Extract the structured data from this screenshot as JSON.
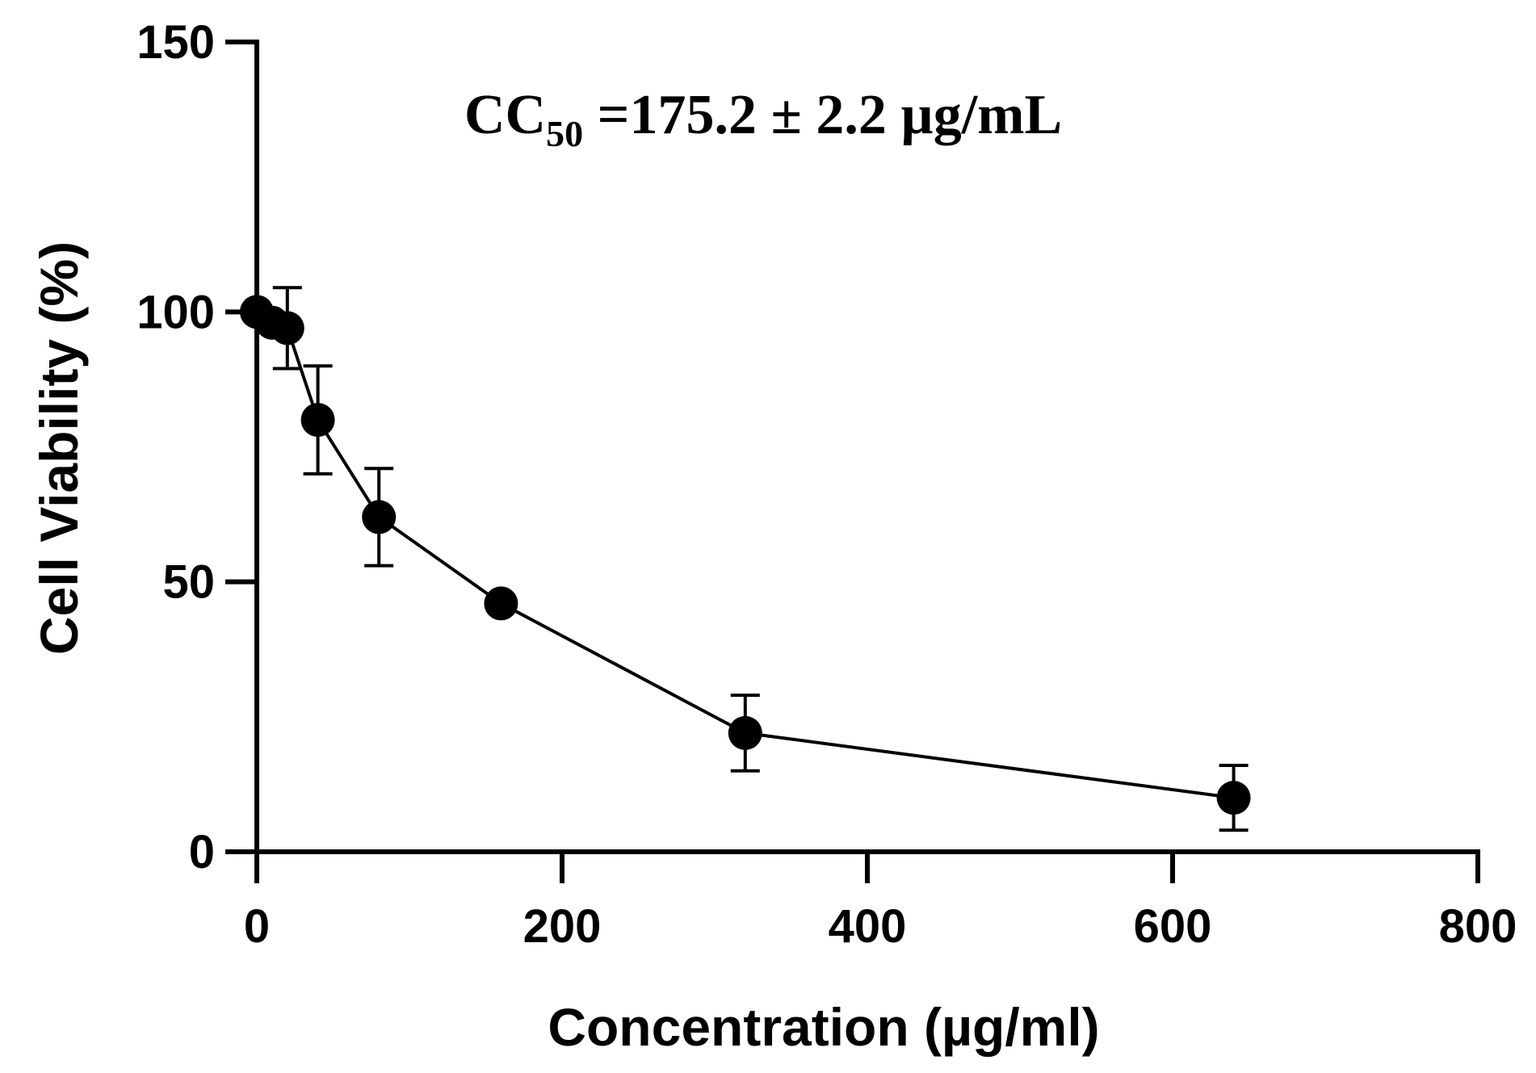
{
  "chart_data": {
    "type": "scatter",
    "title": "",
    "xlabel": "Concentration (µg/ml)",
    "ylabel": "Cell Viability (%)",
    "xlim": [
      0,
      800
    ],
    "ylim": [
      0,
      150
    ],
    "x_ticks": [
      "0",
      "200",
      "400",
      "600",
      "800"
    ],
    "y_ticks": [
      "0",
      "50",
      "100",
      "150"
    ],
    "grid": false,
    "legend": "none",
    "markers": "filled-circle",
    "connected": true,
    "color": "#000000",
    "series": [
      {
        "x": [
          0,
          10,
          20,
          40,
          80,
          160,
          320,
          640
        ],
        "y": [
          100,
          98,
          97,
          80,
          62,
          46,
          22,
          10
        ],
        "error": [
          0,
          0,
          7.5,
          10,
          9,
          0,
          7,
          6
        ]
      }
    ],
    "annotation": {
      "prefix": "CC",
      "subscript": "50",
      "text": " =175.2 ± 2.2 µg/mL"
    }
  }
}
